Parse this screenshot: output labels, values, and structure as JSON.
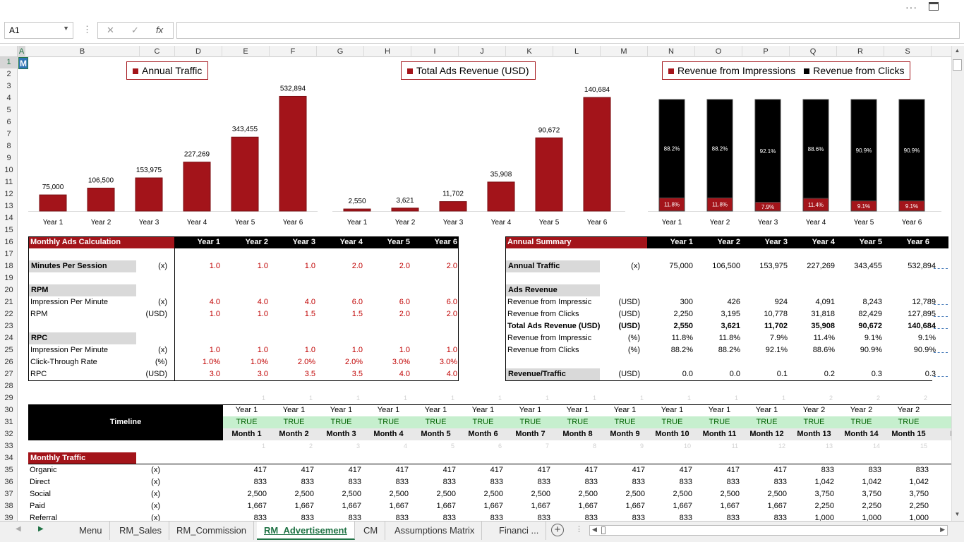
{
  "namebox": "A1",
  "formula_value": "",
  "columns": [
    "A",
    "B",
    "C",
    "D",
    "E",
    "F",
    "G",
    "H",
    "I",
    "J",
    "K",
    "L",
    "M",
    "N",
    "O",
    "P",
    "Q",
    "R",
    "S"
  ],
  "rows": [
    "1",
    "2",
    "3",
    "4",
    "5",
    "6",
    "7",
    "8",
    "9",
    "10",
    "11",
    "12",
    "13",
    "14",
    "15",
    "16",
    "17",
    "18",
    "19",
    "20",
    "21",
    "22",
    "23",
    "24",
    "25",
    "26",
    "27",
    "28",
    "29",
    "30",
    "31",
    "32",
    "33",
    "34",
    "35",
    "36",
    "37",
    "38",
    "39"
  ],
  "a1_text": "M",
  "sheet_tabs": [
    "Menu",
    "RM_Sales",
    "RM_Commission",
    "RM_Advertisement",
    "CM",
    "Assumptions Matrix",
    "Financi ..."
  ],
  "active_tab": "RM_Advertisement",
  "colors": {
    "red": "#a3141a",
    "black": "#000000",
    "excel_green": "#217346"
  },
  "chart_data": [
    {
      "type": "bar",
      "legend": [
        "Annual Traffic"
      ],
      "categories": [
        "Year 1",
        "Year 2",
        "Year 3",
        "Year 4",
        "Year 5",
        "Year 6"
      ],
      "values": [
        75000,
        106500,
        153975,
        227269,
        343455,
        532894
      ],
      "labels": [
        "75,000",
        "106,500",
        "153,975",
        "227,269",
        "343,455",
        "532,894"
      ],
      "ylim": [
        0,
        600000
      ]
    },
    {
      "type": "bar",
      "legend": [
        "Total Ads Revenue (USD)"
      ],
      "categories": [
        "Year 1",
        "Year 2",
        "Year 3",
        "Year 4",
        "Year 5",
        "Year 6"
      ],
      "values": [
        2550,
        3621,
        11702,
        35908,
        90672,
        140684
      ],
      "labels": [
        "2,550",
        "3,621",
        "11,702",
        "35,908",
        "90,672",
        "140,684"
      ],
      "ylim": [
        0,
        160000
      ]
    },
    {
      "type": "bar",
      "stacked": "percent",
      "legend": [
        "Revenue from Impressions",
        "Revenue from Clicks"
      ],
      "categories": [
        "Year 1",
        "Year 2",
        "Year 3",
        "Year 4",
        "Year 5",
        "Year 6"
      ],
      "series": [
        {
          "name": "Revenue from Impressions",
          "values": [
            11.8,
            11.8,
            7.9,
            11.4,
            9.1,
            9.1
          ],
          "labels": [
            "11.8%",
            "11.8%",
            "7.9%",
            "11.4%",
            "9.1%",
            "9.1%"
          ]
        },
        {
          "name": "Revenue from Clicks",
          "values": [
            88.2,
            88.2,
            92.1,
            88.6,
            90.9,
            90.9
          ],
          "labels": [
            "88.2%",
            "88.2%",
            "92.1%",
            "88.6%",
            "90.9%",
            "90.9%"
          ]
        }
      ]
    }
  ],
  "monthly_calc": {
    "title": "Monthly Ads Calculation",
    "years": [
      "Year 1",
      "Year 2",
      "Year 3",
      "Year 4",
      "Year 5",
      "Year 6"
    ],
    "rows": [
      {
        "label": "Minutes Per Session",
        "unit": "(x)",
        "values": [
          "1.0",
          "1.0",
          "1.0",
          "2.0",
          "2.0",
          "2.0"
        ],
        "shaded": true
      },
      {
        "label": "RPM",
        "unit": "",
        "values": [
          "",
          "",
          "",
          "",
          "",
          ""
        ],
        "shaded": true,
        "section": true
      },
      {
        "label": "Impression Per Minute",
        "unit": "(x)",
        "values": [
          "4.0",
          "4.0",
          "4.0",
          "6.0",
          "6.0",
          "6.0"
        ]
      },
      {
        "label": "RPM",
        "unit": "(USD)",
        "values": [
          "1.0",
          "1.0",
          "1.5",
          "1.5",
          "2.0",
          "2.0"
        ]
      },
      {
        "label": "RPC",
        "unit": "",
        "values": [
          "",
          "",
          "",
          "",
          "",
          ""
        ],
        "shaded": true,
        "section": true
      },
      {
        "label": "Impression Per Minute",
        "unit": "(x)",
        "values": [
          "1.0",
          "1.0",
          "1.0",
          "1.0",
          "1.0",
          "1.0"
        ]
      },
      {
        "label": "Click-Through Rate",
        "unit": "(%)",
        "values": [
          "1.0%",
          "1.0%",
          "2.0%",
          "2.0%",
          "3.0%",
          "3.0%"
        ]
      },
      {
        "label": "RPC",
        "unit": "(USD)",
        "values": [
          "3.0",
          "3.0",
          "3.5",
          "3.5",
          "4.0",
          "4.0"
        ]
      }
    ]
  },
  "annual_summary": {
    "title": "Annual Summary",
    "years": [
      "Year 1",
      "Year 2",
      "Year 3",
      "Year 4",
      "Year 5",
      "Year 6"
    ],
    "rows": [
      {
        "label": "Annual Traffic",
        "unit": "(x)",
        "values": [
          "75,000",
          "106,500",
          "153,975",
          "227,269",
          "343,455",
          "532,894"
        ],
        "shaded": true
      },
      {
        "label": "Ads Revenue",
        "unit": "",
        "values": [
          "",
          "",
          "",
          "",
          "",
          ""
        ],
        "shaded": true,
        "section": true
      },
      {
        "label": "Revenue from Impressic",
        "unit": "(USD)",
        "values": [
          "300",
          "426",
          "924",
          "4,091",
          "8,243",
          "12,789"
        ]
      },
      {
        "label": "Revenue from Clicks",
        "unit": "(USD)",
        "values": [
          "2,250",
          "3,195",
          "10,778",
          "31,818",
          "82,429",
          "127,895"
        ]
      },
      {
        "label": "Total Ads Revenue (USD)",
        "unit": "(USD)",
        "values": [
          "2,550",
          "3,621",
          "11,702",
          "35,908",
          "90,672",
          "140,684"
        ],
        "bold": true
      },
      {
        "label": "Revenue from Impressic",
        "unit": "(%)",
        "values": [
          "11.8%",
          "11.8%",
          "7.9%",
          "11.4%",
          "9.1%",
          "9.1%"
        ]
      },
      {
        "label": "Revenue from Clicks",
        "unit": "(%)",
        "values": [
          "88.2%",
          "88.2%",
          "92.1%",
          "88.6%",
          "90.9%",
          "90.9%"
        ]
      },
      {
        "label": "Revenue/Traffic",
        "unit": "(USD)",
        "values": [
          "0.0",
          "0.0",
          "0.1",
          "0.2",
          "0.3",
          "0.3"
        ],
        "shaded": true
      }
    ]
  },
  "timeline": {
    "label": "Timeline",
    "year_row": [
      "Year 1",
      "Year 1",
      "Year 1",
      "Year 1",
      "Year 1",
      "Year 1",
      "Year 1",
      "Year 1",
      "Year 1",
      "Year 1",
      "Year 1",
      "Year 1",
      "Year 2",
      "Year 2",
      "Year 2",
      "Y"
    ],
    "flag_row": [
      "TRUE",
      "TRUE",
      "TRUE",
      "TRUE",
      "TRUE",
      "TRUE",
      "TRUE",
      "TRUE",
      "TRUE",
      "TRUE",
      "TRUE",
      "TRUE",
      "TRUE",
      "TRUE",
      "TRUE",
      "T"
    ],
    "month_row": [
      "Month 1",
      "Month 2",
      "Month 3",
      "Month 4",
      "Month 5",
      "Month 6",
      "Month 7",
      "Month 8",
      "Month 9",
      "Month 10",
      "Month 11",
      "Month 12",
      "Month 13",
      "Month 14",
      "Month 15",
      "Mc"
    ],
    "faint_top": [
      "1",
      "1",
      "1",
      "1",
      "1",
      "1",
      "1",
      "1",
      "1",
      "1",
      "1",
      "1",
      "2",
      "2",
      "2"
    ],
    "faint_bottom": [
      "1",
      "2",
      "3",
      "4",
      "5",
      "6",
      "7",
      "8",
      "9",
      "10",
      "11",
      "12",
      "13",
      "14",
      "15"
    ]
  },
  "monthly_traffic": {
    "title": "Monthly Traffic",
    "rows": [
      {
        "label": "Organic",
        "unit": "(x)",
        "values": [
          "417",
          "417",
          "417",
          "417",
          "417",
          "417",
          "417",
          "417",
          "417",
          "417",
          "417",
          "417",
          "833",
          "833",
          "833"
        ]
      },
      {
        "label": "Direct",
        "unit": "(x)",
        "values": [
          "833",
          "833",
          "833",
          "833",
          "833",
          "833",
          "833",
          "833",
          "833",
          "833",
          "833",
          "833",
          "1,042",
          "1,042",
          "1,042"
        ]
      },
      {
        "label": "Social",
        "unit": "(x)",
        "values": [
          "2,500",
          "2,500",
          "2,500",
          "2,500",
          "2,500",
          "2,500",
          "2,500",
          "2,500",
          "2,500",
          "2,500",
          "2,500",
          "2,500",
          "3,750",
          "3,750",
          "3,750"
        ]
      },
      {
        "label": "Paid",
        "unit": "(x)",
        "values": [
          "1,667",
          "1,667",
          "1,667",
          "1,667",
          "1,667",
          "1,667",
          "1,667",
          "1,667",
          "1,667",
          "1,667",
          "1,667",
          "1,667",
          "2,250",
          "2,250",
          "2,250"
        ]
      },
      {
        "label": "Referral",
        "unit": "(x)",
        "values": [
          "833",
          "833",
          "833",
          "833",
          "833",
          "833",
          "833",
          "833",
          "833",
          "833",
          "833",
          "833",
          "1,000",
          "1,000",
          "1,000"
        ]
      }
    ]
  }
}
